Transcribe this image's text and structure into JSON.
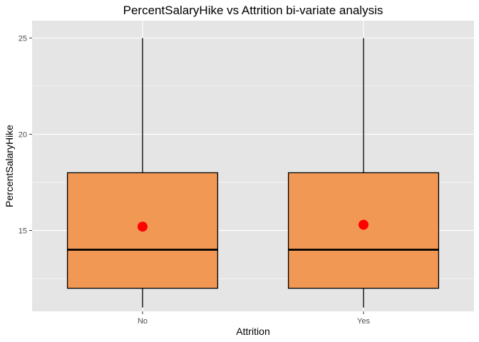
{
  "chart_data": {
    "type": "boxplot",
    "title": "PercentSalaryHike vs Attrition bi-variate analysis",
    "xlabel": "Attrition",
    "ylabel": "PercentSalaryHike",
    "categories": [
      "No",
      "Yes"
    ],
    "ylim": [
      10.8,
      25.9
    ],
    "yticks": [
      15,
      20,
      25
    ],
    "grid": true,
    "boxes": [
      {
        "category": "No",
        "whisker_low": 11,
        "q1": 12,
        "median": 14,
        "q3": 18,
        "whisker_high": 25,
        "mean": 15.2
      },
      {
        "category": "Yes",
        "whisker_low": 11,
        "q1": 12,
        "median": 14,
        "q3": 18,
        "whisker_high": 25,
        "mean": 15.3
      }
    ],
    "colors": {
      "box_fill": "#f19854",
      "mean_point": "#ff0000",
      "panel_bg": "#e5e5e5",
      "grid": "#ffffff"
    }
  }
}
